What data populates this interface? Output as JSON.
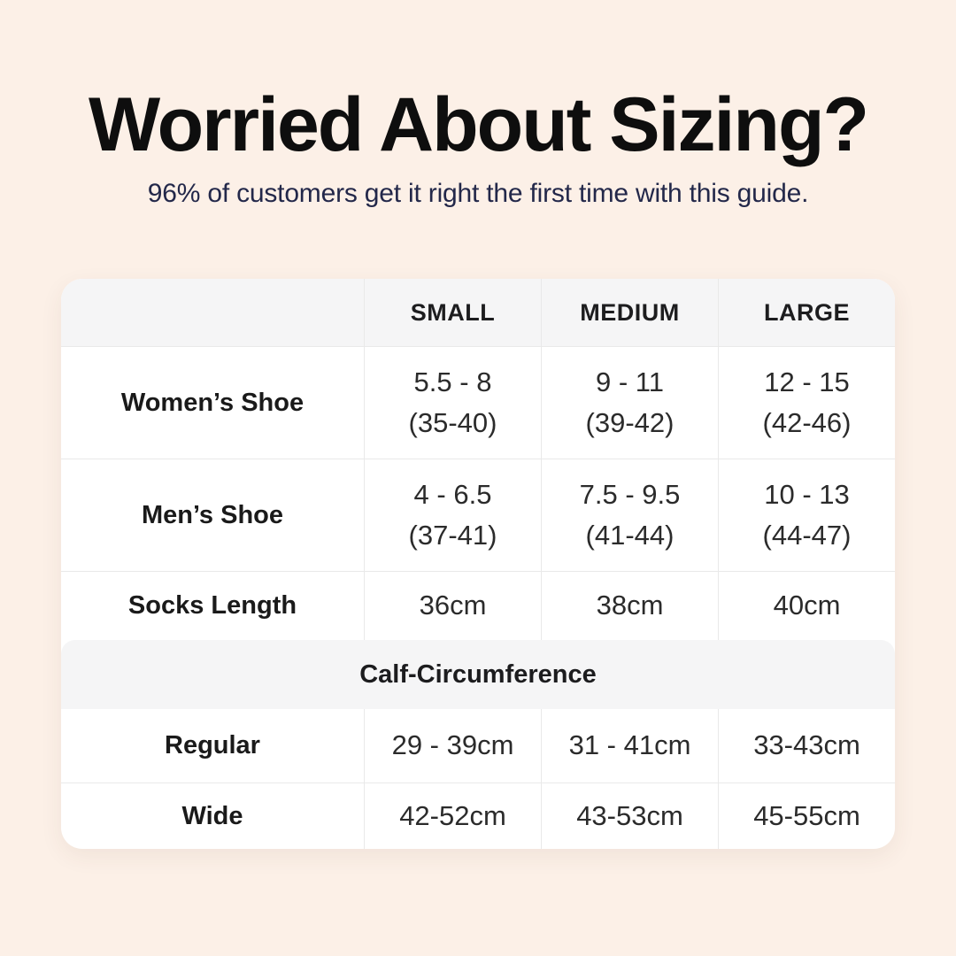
{
  "page": {
    "background": "#fcf0e7",
    "title": "Worried About Sizing?",
    "subtitle": "96% of customers get it right the first time with this guide.",
    "title_color": "#0e0e0e",
    "subtitle_color": "#23284a"
  },
  "table": {
    "corner_label": "",
    "size_headers": [
      "SMALL",
      "MEDIUM",
      "LARGE"
    ],
    "rows": [
      {
        "label": "Women’s Shoe",
        "cells": [
          {
            "line1": "5.5 - 8",
            "line2": "(35-40)"
          },
          {
            "line1": "9 - 11",
            "line2": "(39-42)"
          },
          {
            "line1": "12 - 15",
            "line2": "(42-46)"
          }
        ]
      },
      {
        "label": "Men’s Shoe",
        "cells": [
          {
            "line1": "4 - 6.5",
            "line2": "(37-41)"
          },
          {
            "line1": "7.5 - 9.5",
            "line2": "(41-44)"
          },
          {
            "line1": "10 - 13",
            "line2": "(44-47)"
          }
        ]
      },
      {
        "label": "Socks Length",
        "cells": [
          {
            "line1": "36cm"
          },
          {
            "line1": "38cm"
          },
          {
            "line1": "40cm"
          }
        ]
      }
    ],
    "section_header": "Calf-Circumference",
    "section_rows": [
      {
        "label": "Regular",
        "cells": [
          {
            "line1": "29 - 39cm"
          },
          {
            "line1": "31 - 41cm"
          },
          {
            "line1": "33-43cm"
          }
        ]
      },
      {
        "label": "Wide",
        "cells": [
          {
            "line1": "42-52cm"
          },
          {
            "line1": "43-53cm"
          },
          {
            "line1": "45-55cm"
          }
        ]
      }
    ],
    "colors": {
      "card_bg": "#ffffff",
      "band_bg": "#f5f5f6",
      "border": "#e9e9e9",
      "text": "#2b2b2b"
    }
  },
  "chart_data": {
    "type": "table",
    "title": "Worried About Sizing?",
    "subtitle": "96% of customers get it right the first time with this guide.",
    "columns": [
      "",
      "SMALL",
      "MEDIUM",
      "LARGE"
    ],
    "rows": [
      [
        "Women’s Shoe",
        "5.5 - 8 (35-40)",
        "9 - 11 (39-42)",
        "12 - 15 (42-46)"
      ],
      [
        "Men’s Shoe",
        "4 - 6.5 (37-41)",
        "7.5 - 9.5 (41-44)",
        "10 - 13 (44-47)"
      ],
      [
        "Socks Length",
        "36cm",
        "38cm",
        "40cm"
      ],
      [
        "Calf-Circumference",
        "",
        "",
        ""
      ],
      [
        "Regular",
        "29 - 39cm",
        "31 - 41cm",
        "33-43cm"
      ],
      [
        "Wide",
        "42-52cm",
        "43-53cm",
        "45-55cm"
      ]
    ],
    "layout": {
      "section_span_row": "Calf-Circumference",
      "header_background": "#f5f5f6",
      "page_background": "#fcf0e7"
    }
  }
}
